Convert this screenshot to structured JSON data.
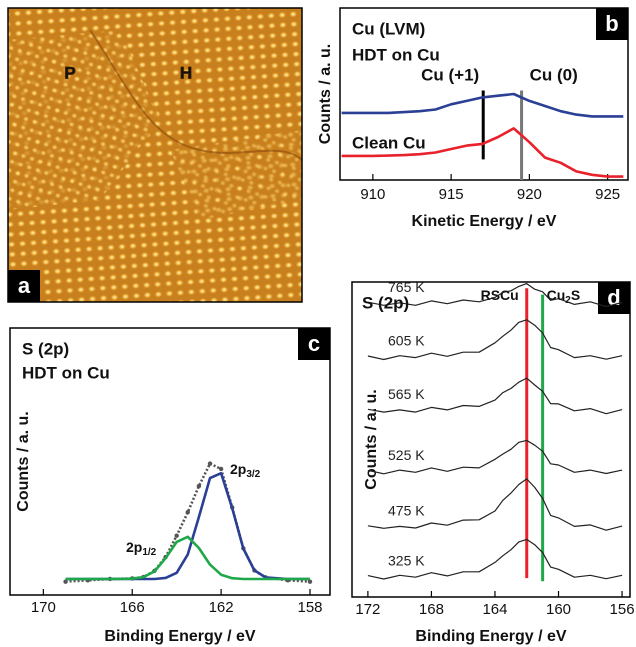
{
  "image_panel": {
    "panel_label": "a",
    "markers": [
      "P",
      "H"
    ]
  },
  "chart_data": [
    {
      "type": "line",
      "panel_label": "b",
      "title": "Cu (LVM)",
      "xlabel": "Kinetic Energy / eV",
      "ylabel": "Counts / a. u.",
      "xlim": [
        907.9,
        926.3
      ],
      "xticks": [
        910,
        915,
        920,
        925
      ],
      "ylim": [
        0,
        10
      ],
      "x": [
        908,
        909,
        910,
        911,
        912,
        913,
        914,
        915,
        916,
        917,
        918,
        919,
        920,
        921,
        922,
        923,
        924,
        925,
        926
      ],
      "series": [
        {
          "name": "HDT on Cu",
          "color": "#2b3f95",
          "values": [
            3.9,
            3.9,
            3.9,
            3.9,
            3.95,
            4.0,
            4.1,
            4.4,
            4.6,
            4.8,
            4.9,
            5.0,
            4.6,
            4.3,
            4.0,
            3.8,
            3.7,
            3.7,
            3.7
          ]
        },
        {
          "name": "Clean Cu",
          "color": "#e8212b",
          "values": [
            1.4,
            1.4,
            1.4,
            1.42,
            1.45,
            1.5,
            1.6,
            1.8,
            2.0,
            2.1,
            2.5,
            3.0,
            2.2,
            1.3,
            1.0,
            0.5,
            0.3,
            0.2,
            0.2
          ]
        }
      ],
      "markers": [
        {
          "label": [
            "Cu (+1)"
          ],
          "x": 917.05,
          "y": [
            1.2,
            5.2
          ],
          "color": "#000000"
        },
        {
          "label": [
            "Cu (0)"
          ],
          "x": 919.5,
          "y": [
            0,
            5.2
          ],
          "color": "#777777"
        }
      ]
    },
    {
      "type": "line",
      "panel_label": "c",
      "title": "S (2p)",
      "subtitle": "HDT on Cu",
      "xlabel": "Binding Energy / eV",
      "ylabel": "Counts / a. u.",
      "xlim": [
        171.5,
        157.1
      ],
      "xticks": [
        170,
        166,
        162,
        158
      ],
      "ylim": [
        0,
        10
      ],
      "x": [
        169,
        168,
        167,
        166,
        165.5,
        165,
        164.5,
        164,
        163.5,
        163,
        162.5,
        162,
        161.5,
        161,
        160.5,
        160,
        159,
        158
      ],
      "series": [
        {
          "color": "#555555",
          "marker": "circle",
          "values": [
            0.5,
            0.55,
            0.6,
            0.62,
            0.67,
            0.9,
            1.42,
            2.22,
            3.1,
            4.08,
            4.92,
            4.72,
            3.28,
            1.75,
            0.92,
            0.66,
            0.55,
            0.5
          ]
        },
        {
          "color": "#2b3f95",
          "values": [
            0.6,
            0.6,
            0.6,
            0.6,
            0.6,
            0.6,
            0.64,
            0.83,
            1.52,
            2.92,
            4.38,
            4.56,
            3.25,
            1.74,
            0.92,
            0.66,
            0.6,
            0.6
          ]
        },
        {
          "color": "#1fa84a",
          "values": [
            0.6,
            0.6,
            0.6,
            0.61,
            0.67,
            0.88,
            1.38,
            1.99,
            2.18,
            1.76,
            1.14,
            0.76,
            0.63,
            0.6,
            0.6,
            0.6,
            0.6,
            0.6
          ]
        }
      ],
      "annotations": [
        [
          "2p",
          "1/2"
        ],
        [
          "2p",
          "3/2"
        ]
      ]
    },
    {
      "type": "line",
      "panel_label": "d",
      "title": "S (2p)",
      "xlabel": "Binding Energy / eV",
      "ylabel": "Counts / a. u.",
      "xlim": [
        173.0,
        155.5
      ],
      "xticks": [
        172,
        168,
        164,
        160,
        156
      ],
      "ylim": [
        0,
        10
      ],
      "x": [
        172,
        171,
        170,
        169,
        168,
        167,
        166,
        165,
        164,
        163.5,
        163,
        162.5,
        162,
        161.5,
        161,
        160.5,
        160,
        159,
        158,
        157,
        156
      ],
      "series": [
        {
          "name": "765 K",
          "color": "#222222",
          "values": [
            9.36,
            9.26,
            9.34,
            9.26,
            9.4,
            9.31,
            9.43,
            9.37,
            9.51,
            9.67,
            9.72,
            9.86,
            9.95,
            9.77,
            9.69,
            9.42,
            9.47,
            9.29,
            9.37,
            9.22,
            9.35
          ]
        },
        {
          "name": "605 K",
          "color": "#222222",
          "values": [
            7.65,
            7.54,
            7.66,
            7.6,
            7.74,
            7.64,
            7.77,
            7.77,
            8.07,
            8.28,
            8.47,
            8.72,
            8.8,
            8.63,
            8.38,
            7.92,
            7.85,
            7.6,
            7.66,
            7.55,
            7.66
          ]
        },
        {
          "name": "565 K",
          "color": "#222222",
          "values": [
            5.96,
            5.87,
            5.94,
            5.87,
            6.02,
            5.94,
            6.08,
            6.05,
            6.25,
            6.49,
            6.62,
            6.82,
            6.95,
            6.73,
            6.53,
            6.14,
            6.13,
            5.91,
            5.98,
            5.82,
            5.95
          ]
        },
        {
          "name": "525 K",
          "color": "#222222",
          "values": [
            4.02,
            3.91,
            4.03,
            3.96,
            4.1,
            3.99,
            4.12,
            4.1,
            4.37,
            4.54,
            4.69,
            4.91,
            4.97,
            4.82,
            4.63,
            4.23,
            4.19,
            3.96,
            4.03,
            3.92,
            4.03
          ]
        },
        {
          "name": "475 K",
          "color": "#222222",
          "values": [
            2.26,
            2.18,
            2.24,
            2.19,
            2.35,
            2.28,
            2.44,
            2.45,
            2.73,
            3.07,
            3.3,
            3.57,
            3.75,
            3.48,
            3.13,
            2.59,
            2.51,
            2.24,
            2.29,
            2.12,
            2.25
          ]
        },
        {
          "name": "325 K",
          "color": "#222222",
          "values": [
            0.68,
            0.57,
            0.69,
            0.63,
            0.77,
            0.67,
            0.8,
            0.8,
            1.1,
            1.31,
            1.5,
            1.75,
            1.83,
            1.66,
            1.41,
            0.95,
            0.88,
            0.63,
            0.69,
            0.58,
            0.69
          ]
        }
      ],
      "markers": [
        {
          "label": [
            "RSCu"
          ],
          "x": 162.0,
          "y": [
            0.6,
            9.8
          ],
          "color": "#e8212b"
        },
        {
          "label": [
            "Cu",
            "2",
            "S"
          ],
          "x": 161.0,
          "y": [
            0.5,
            9.6
          ],
          "color": "#1fa84a"
        }
      ]
    }
  ]
}
